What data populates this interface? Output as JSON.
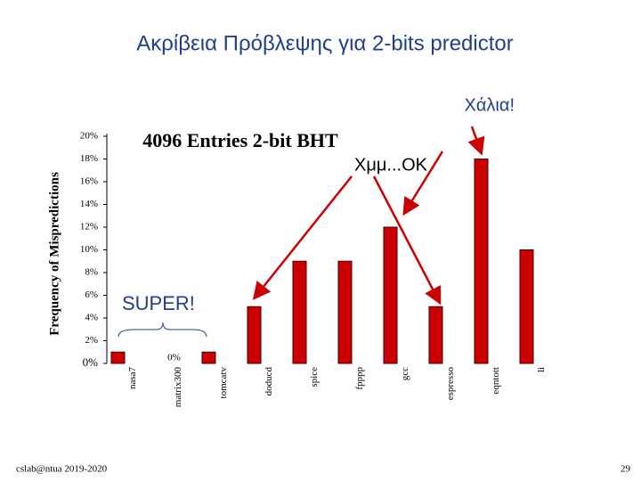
{
  "chart_data": {
    "type": "bar",
    "title": "Ακρίβεια Πρόβλεψης για 2-bits predictor",
    "subtitle": "4096 Entries 2-bit BHT",
    "ylabel": "Frequency of Mispredictions",
    "categories": [
      "nasa7",
      "matrix300",
      "tomcatv",
      "doducd",
      "spice",
      "fpppp",
      "gcc",
      "espresso",
      "eqntott",
      "li"
    ],
    "values": [
      1,
      0,
      1,
      5,
      9,
      9,
      12,
      5,
      18,
      10
    ],
    "value_labels": [
      null,
      "0%",
      null,
      null,
      null,
      null,
      null,
      null,
      null,
      null
    ],
    "color": "#cc0000",
    "ylim": [
      0,
      20
    ],
    "yticks": [
      {
        "value": 0,
        "label": "0%"
      },
      {
        "value": 2,
        "label": "2%"
      },
      {
        "value": 4,
        "label": "4%"
      },
      {
        "value": 6,
        "label": "6%"
      },
      {
        "value": 8,
        "label": "8%"
      },
      {
        "value": 10,
        "label": "10%"
      },
      {
        "value": 12,
        "label": "12%"
      },
      {
        "value": 14,
        "label": "14%"
      },
      {
        "value": 16,
        "label": "16%"
      },
      {
        "value": 18,
        "label": "18%"
      },
      {
        "value": 20,
        "label": "20%"
      }
    ],
    "annotations": [
      "Χάλια!",
      "Χμμ...OK",
      "SUPER!"
    ],
    "footer": "cslab@ntua 2019-2020",
    "page_number": "29"
  }
}
